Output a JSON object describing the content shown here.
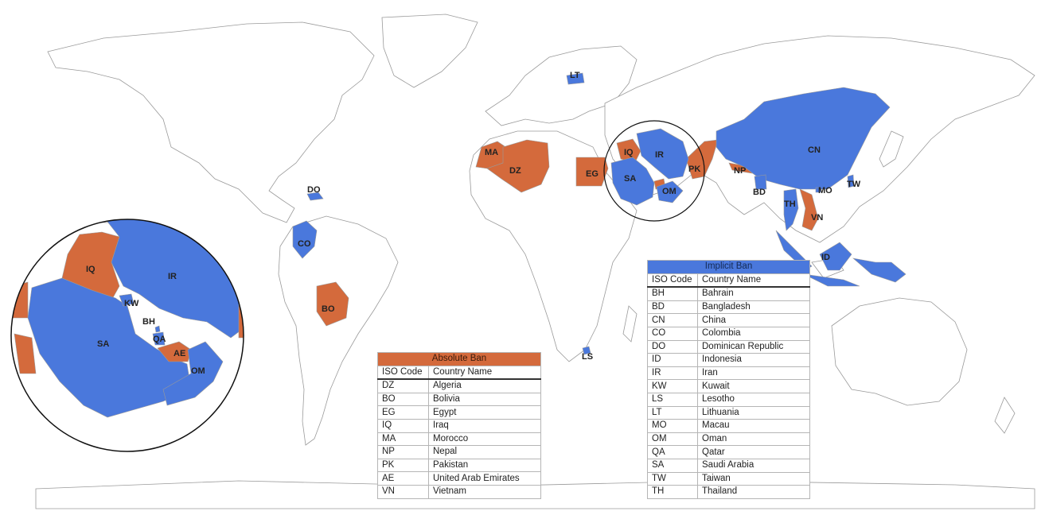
{
  "colors": {
    "absolute_ban": "#d46a3c",
    "implicit_ban": "#4a78dc",
    "land": "#ffffff",
    "border": "#9a9a9a"
  },
  "map_labels": {
    "LT": "LT",
    "MA": "MA",
    "DZ": "DZ",
    "EG": "EG",
    "IQ": "IQ",
    "IR": "IR",
    "SA": "SA",
    "OM": "OM",
    "PK": "PK",
    "NP": "NP",
    "BD": "BD",
    "CN": "CN",
    "MO": "MO",
    "TW": "TW",
    "TH": "TH",
    "VN": "VN",
    "ID": "ID",
    "DO": "DO",
    "CO": "CO",
    "BO": "BO",
    "LS": "LS"
  },
  "inset_labels": {
    "IQ": "IQ",
    "IR": "IR",
    "KW": "KW",
    "BH": "BH",
    "QA": "QA",
    "AE": "AE",
    "SA": "SA",
    "OM": "OM"
  },
  "absolute_ban": {
    "title": "Absolute Ban",
    "col_code": "ISO Code",
    "col_name": "Country Name",
    "rows": [
      {
        "code": "DZ",
        "name": "Algeria"
      },
      {
        "code": "BO",
        "name": "Bolivia"
      },
      {
        "code": "EG",
        "name": "Egypt"
      },
      {
        "code": "IQ",
        "name": "Iraq"
      },
      {
        "code": "MA",
        "name": "Morocco"
      },
      {
        "code": "NP",
        "name": "Nepal"
      },
      {
        "code": "PK",
        "name": "Pakistan"
      },
      {
        "code": "AE",
        "name": "United Arab Emirates"
      },
      {
        "code": "VN",
        "name": "Vietnam"
      }
    ]
  },
  "implicit_ban": {
    "title": "Implicit Ban",
    "col_code": "ISO Code",
    "col_name": "Country Name",
    "rows": [
      {
        "code": "BH",
        "name": "Bahrain"
      },
      {
        "code": "BD",
        "name": "Bangladesh"
      },
      {
        "code": "CN",
        "name": "China"
      },
      {
        "code": "CO",
        "name": "Colombia"
      },
      {
        "code": "DO",
        "name": "Dominican Republic"
      },
      {
        "code": "ID",
        "name": "Indonesia"
      },
      {
        "code": "IR",
        "name": "Iran"
      },
      {
        "code": "KW",
        "name": "Kuwait"
      },
      {
        "code": "LS",
        "name": "Lesotho"
      },
      {
        "code": "LT",
        "name": "Lithuania"
      },
      {
        "code": "MO",
        "name": "Macau"
      },
      {
        "code": "OM",
        "name": "Oman"
      },
      {
        "code": "QA",
        "name": "Qatar"
      },
      {
        "code": "SA",
        "name": "Saudi Arabia"
      },
      {
        "code": "TW",
        "name": "Taiwan"
      },
      {
        "code": "TH",
        "name": "Thailand"
      }
    ]
  }
}
